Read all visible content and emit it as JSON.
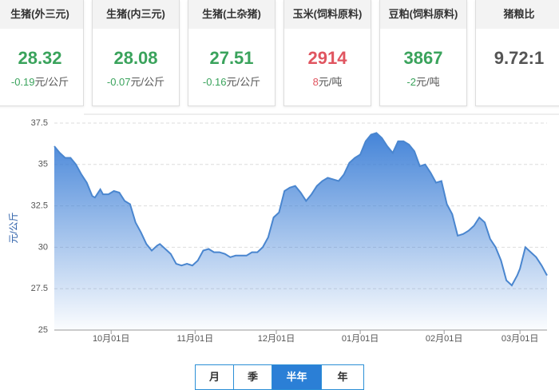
{
  "cards": [
    {
      "title": "生猪(外三元)",
      "price": "28.32",
      "change": "-0.19",
      "unit": "元/公斤",
      "color": "#3aa35c"
    },
    {
      "title": "生猪(内三元)",
      "price": "28.08",
      "change": "-0.07",
      "unit": "元/公斤",
      "color": "#3aa35c"
    },
    {
      "title": "生猪(土杂猪)",
      "price": "27.51",
      "change": "-0.16",
      "unit": "元/公斤",
      "color": "#3aa35c"
    },
    {
      "title": "玉米(饲料原料)",
      "price": "2914",
      "change": "8",
      "unit": "元/吨",
      "color": "#e05560"
    },
    {
      "title": "豆粕(饲料原料)",
      "price": "3867",
      "change": "-2",
      "unit": "元/吨",
      "color": "#3aa35c"
    },
    {
      "title": "猪粮比",
      "price": "9.72:1",
      "color": "#555555"
    }
  ],
  "chart_data": {
    "type": "area",
    "y_label": "元/公斤",
    "color": "#4a86cf",
    "grid": true,
    "x": [
      0,
      2,
      4,
      6,
      8,
      10,
      12,
      14,
      15,
      17,
      18,
      20,
      22,
      24,
      26,
      28,
      30,
      32,
      34,
      36,
      38,
      39,
      41,
      43,
      45,
      47,
      49,
      51,
      53,
      55,
      57,
      59,
      61,
      63,
      65,
      67,
      69,
      71,
      73,
      75,
      77,
      79,
      81,
      83,
      85,
      87,
      89,
      91,
      93,
      95,
      97,
      99,
      101,
      103,
      105,
      107,
      109,
      111,
      113,
      115,
      117,
      119,
      121,
      123,
      125,
      127,
      129,
      131,
      133,
      135,
      137,
      139,
      141,
      143,
      145,
      147,
      149,
      151,
      153,
      155,
      157,
      159,
      161,
      163,
      165,
      167,
      169,
      171,
      172,
      174,
      176,
      178,
      180,
      182
    ],
    "values": [
      36.1,
      35.7,
      35.4,
      35.4,
      35.0,
      34.4,
      33.9,
      33.1,
      33.0,
      33.5,
      33.2,
      33.2,
      33.4,
      33.3,
      32.8,
      32.6,
      31.5,
      30.9,
      30.2,
      29.8,
      30.1,
      30.2,
      29.9,
      29.6,
      29.0,
      28.9,
      29.0,
      28.9,
      29.2,
      29.8,
      29.9,
      29.7,
      29.7,
      29.6,
      29.4,
      29.5,
      29.5,
      29.5,
      29.7,
      29.7,
      30.0,
      30.6,
      31.8,
      32.1,
      33.4,
      33.6,
      33.7,
      33.3,
      32.8,
      33.2,
      33.7,
      34.0,
      34.2,
      34.1,
      34.0,
      34.4,
      35.1,
      35.4,
      35.6,
      36.4,
      36.8,
      36.9,
      36.6,
      36.1,
      35.7,
      36.4,
      36.4,
      36.2,
      35.8,
      34.9,
      35.0,
      34.5,
      33.9,
      34.0,
      32.6,
      32.0,
      30.7,
      30.8,
      31.0,
      31.3,
      31.8,
      31.5,
      30.5,
      30.0,
      29.2,
      28.0,
      27.7,
      28.3,
      28.7,
      30.0,
      29.7,
      29.4,
      28.9,
      28.3
    ],
    "xlim": [
      0,
      182
    ],
    "ylim": [
      25,
      37.5
    ],
    "yticks": [
      25,
      27.5,
      30,
      32.5,
      35,
      37.5
    ],
    "xticks": [
      {
        "value": 21,
        "label": "10月01日"
      },
      {
        "value": 52,
        "label": "11月01日"
      },
      {
        "value": 82,
        "label": "12月01日"
      },
      {
        "value": 113,
        "label": "01月01日"
      },
      {
        "value": 144,
        "label": "02月01日"
      },
      {
        "value": 172,
        "label": "03月01日"
      }
    ]
  },
  "range_buttons": {
    "options": [
      "月",
      "季",
      "半年",
      "年"
    ],
    "active": 2
  }
}
